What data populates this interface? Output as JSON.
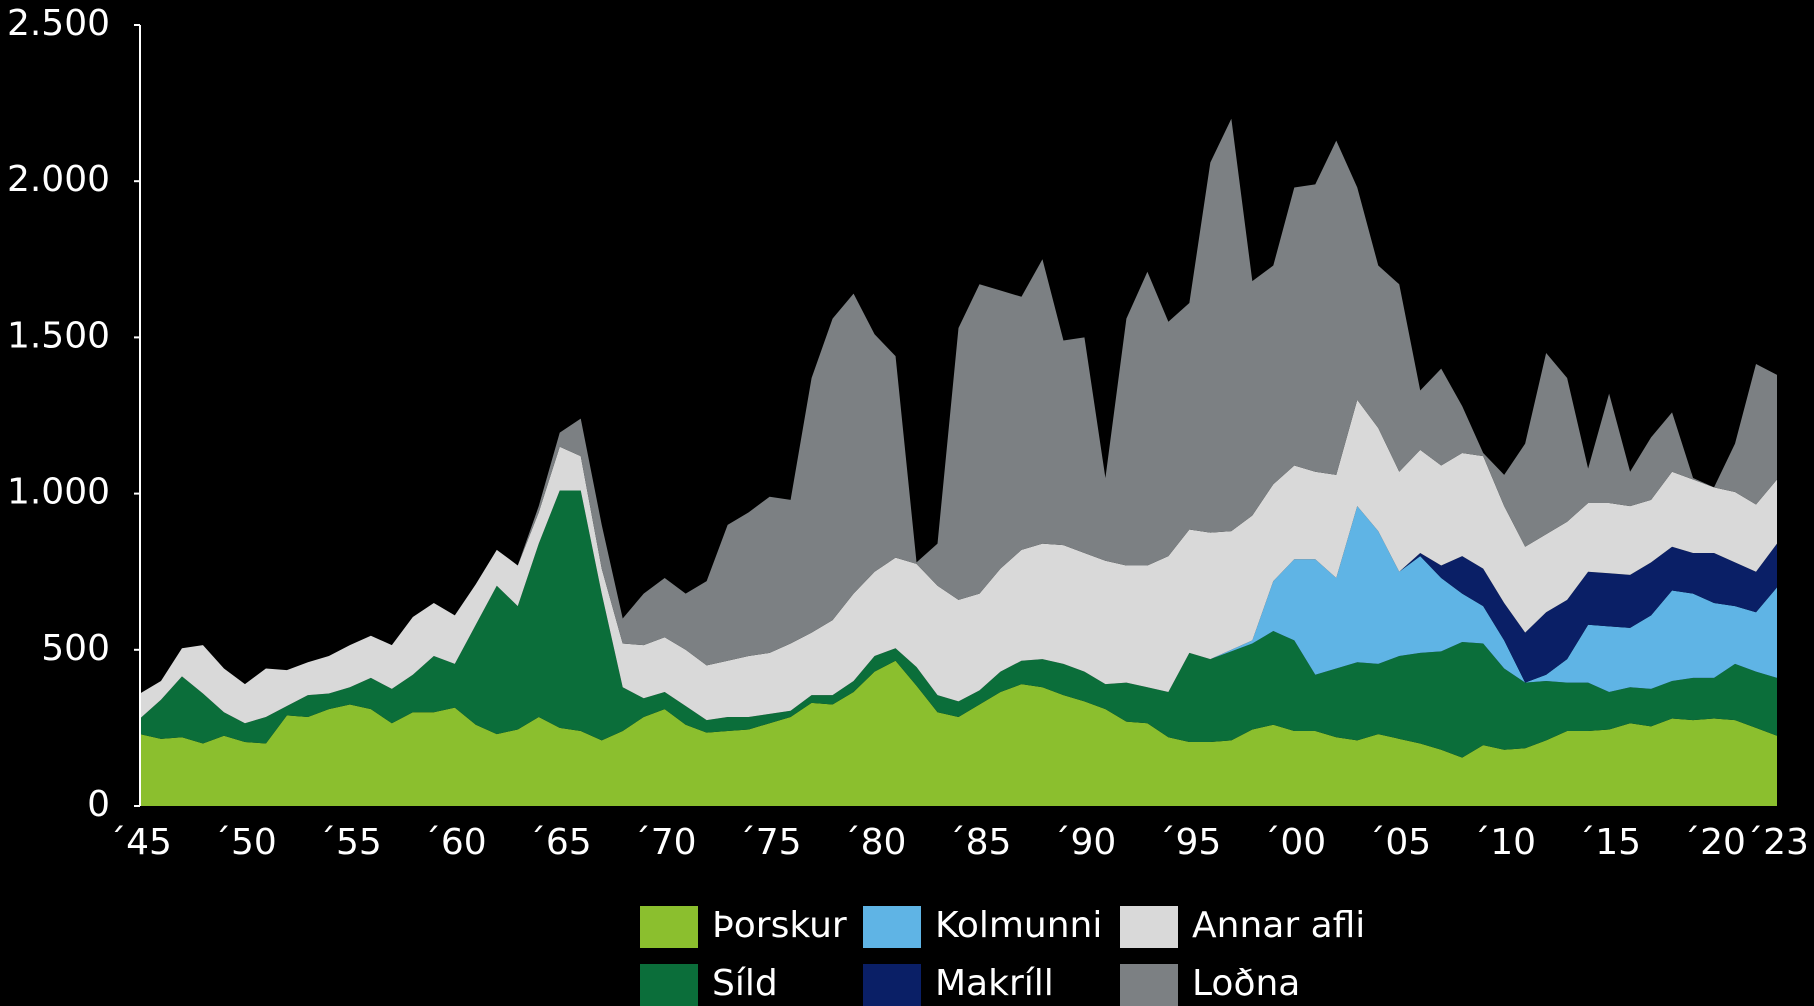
{
  "chart_data": {
    "type": "stacked-area",
    "x": [
      1945,
      1946,
      1947,
      1948,
      1949,
      1950,
      1951,
      1952,
      1953,
      1954,
      1955,
      1956,
      1957,
      1958,
      1959,
      1960,
      1961,
      1962,
      1963,
      1964,
      1965,
      1966,
      1967,
      1968,
      1969,
      1970,
      1971,
      1972,
      1973,
      1974,
      1975,
      1976,
      1977,
      1978,
      1979,
      1980,
      1981,
      1982,
      1983,
      1984,
      1985,
      1986,
      1987,
      1988,
      1989,
      1990,
      1991,
      1992,
      1993,
      1994,
      1995,
      1996,
      1997,
      1998,
      1999,
      2000,
      2001,
      2002,
      2003,
      2004,
      2005,
      2006,
      2007,
      2008,
      2009,
      2010,
      2011,
      2012,
      2013,
      2014,
      2015,
      2016,
      2017,
      2018,
      2019,
      2020,
      2021,
      2022,
      2023
    ],
    "xlim": [
      1945,
      2023
    ],
    "xticks": [
      {
        "value": 1945,
        "label": "´45"
      },
      {
        "value": 1950,
        "label": "´50"
      },
      {
        "value": 1955,
        "label": "´55"
      },
      {
        "value": 1960,
        "label": "´60"
      },
      {
        "value": 1965,
        "label": "´65"
      },
      {
        "value": 1970,
        "label": "´70"
      },
      {
        "value": 1975,
        "label": "´75"
      },
      {
        "value": 1980,
        "label": "´80"
      },
      {
        "value": 1985,
        "label": "´85"
      },
      {
        "value": 1990,
        "label": "´90"
      },
      {
        "value": 1995,
        "label": "´95"
      },
      {
        "value": 2000,
        "label": "´00"
      },
      {
        "value": 2005,
        "label": "´05"
      },
      {
        "value": 2010,
        "label": "´10"
      },
      {
        "value": 2015,
        "label": "´15"
      },
      {
        "value": 2020,
        "label": "´20"
      },
      {
        "value": 2023,
        "label": "´23"
      }
    ],
    "ylim": [
      0,
      2500
    ],
    "yticks": [
      0,
      500,
      {
        "value": 1000,
        "label": "1.000"
      },
      {
        "value": 1500,
        "label": "1.500"
      },
      {
        "value": 2000,
        "label": "2.000"
      },
      {
        "value": 2500,
        "label": "2.500"
      }
    ],
    "grid": false,
    "series": [
      {
        "name": "Þorskur",
        "color": "#8bbf2e",
        "values": [
          230,
          215,
          220,
          200,
          225,
          205,
          200,
          290,
          285,
          310,
          325,
          310,
          265,
          300,
          300,
          315,
          260,
          230,
          245,
          285,
          250,
          240,
          210,
          240,
          285,
          310,
          260,
          235,
          240,
          245,
          265,
          285,
          330,
          325,
          365,
          430,
          465,
          385,
          300,
          285,
          325,
          365,
          390,
          380,
          355,
          335,
          310,
          270,
          265,
          220,
          205,
          205,
          210,
          245,
          260,
          240,
          240,
          220,
          210,
          230,
          215,
          200,
          180,
          155,
          195,
          180,
          185,
          210,
          240,
          240,
          245,
          265,
          255,
          280,
          275,
          280,
          275,
          250,
          225
        ]
      },
      {
        "name": "Síld",
        "color": "#0b6e3a",
        "values": [
          50,
          125,
          195,
          160,
          75,
          60,
          85,
          30,
          70,
          50,
          55,
          100,
          110,
          120,
          180,
          140,
          320,
          475,
          395,
          555,
          760,
          770,
          470,
          140,
          60,
          55,
          60,
          40,
          45,
          40,
          30,
          20,
          25,
          30,
          35,
          50,
          40,
          60,
          55,
          50,
          45,
          65,
          75,
          90,
          100,
          95,
          80,
          125,
          115,
          145,
          285,
          265,
          285,
          275,
          300,
          290,
          180,
          220,
          250,
          225,
          265,
          290,
          315,
          370,
          325,
          260,
          210,
          190,
          155,
          155,
          120,
          115,
          120,
          120,
          135,
          130,
          180,
          180,
          185
        ]
      },
      {
        "name": "Kolmunni",
        "color": "#5fb4e5",
        "values": [
          0,
          0,
          0,
          0,
          0,
          0,
          0,
          0,
          0,
          0,
          0,
          0,
          0,
          0,
          0,
          0,
          0,
          0,
          0,
          0,
          0,
          0,
          0,
          0,
          0,
          0,
          0,
          0,
          0,
          0,
          0,
          0,
          0,
          0,
          0,
          0,
          0,
          0,
          0,
          0,
          0,
          0,
          0,
          0,
          0,
          0,
          0,
          0,
          0,
          0,
          0,
          0,
          5,
          10,
          160,
          260,
          370,
          290,
          500,
          425,
          270,
          310,
          235,
          155,
          120,
          90,
          0,
          20,
          75,
          185,
          210,
          190,
          235,
          290,
          270,
          240,
          185,
          190,
          290
        ]
      },
      {
        "name": "Makríll",
        "color": "#0a1f66",
        "values": [
          0,
          0,
          0,
          0,
          0,
          0,
          0,
          0,
          0,
          0,
          0,
          0,
          0,
          0,
          0,
          0,
          0,
          0,
          0,
          0,
          0,
          0,
          0,
          0,
          0,
          0,
          0,
          0,
          0,
          0,
          0,
          0,
          0,
          0,
          0,
          0,
          0,
          0,
          0,
          0,
          0,
          0,
          0,
          0,
          0,
          0,
          0,
          0,
          0,
          0,
          0,
          0,
          0,
          0,
          0,
          0,
          0,
          0,
          0,
          0,
          0,
          10,
          40,
          120,
          120,
          120,
          160,
          200,
          190,
          170,
          170,
          170,
          170,
          140,
          130,
          160,
          140,
          130,
          140
        ]
      },
      {
        "name": "Annar afli",
        "color": "#d9d9d9",
        "values": [
          80,
          60,
          90,
          155,
          140,
          125,
          155,
          115,
          105,
          120,
          135,
          135,
          140,
          185,
          170,
          155,
          130,
          115,
          130,
          100,
          140,
          110,
          80,
          140,
          170,
          175,
          180,
          175,
          180,
          195,
          195,
          215,
          200,
          240,
          280,
          270,
          290,
          330,
          350,
          325,
          310,
          330,
          355,
          370,
          380,
          380,
          395,
          375,
          390,
          435,
          395,
          405,
          380,
          400,
          310,
          300,
          280,
          330,
          340,
          330,
          320,
          330,
          320,
          330,
          360,
          310,
          275,
          250,
          250,
          220,
          225,
          220,
          200,
          240,
          235,
          210,
          225,
          215,
          205
        ]
      },
      {
        "name": "Loðna",
        "color": "#7c8083",
        "values": [
          0,
          0,
          0,
          0,
          0,
          0,
          0,
          0,
          0,
          0,
          0,
          0,
          0,
          0,
          0,
          0,
          0,
          0,
          0,
          20,
          45,
          120,
          140,
          80,
          165,
          190,
          180,
          270,
          435,
          460,
          500,
          460,
          815,
          965,
          960,
          760,
          645,
          5,
          135,
          870,
          990,
          890,
          810,
          910,
          655,
          690,
          265,
          790,
          940,
          750,
          725,
          1185,
          1320,
          750,
          700,
          890,
          920,
          1070,
          680,
          520,
          600,
          190,
          310,
          150,
          10,
          100,
          330,
          580,
          460,
          110,
          350,
          110,
          200,
          190,
          5,
          0,
          155,
          450,
          335
        ]
      }
    ]
  }
}
